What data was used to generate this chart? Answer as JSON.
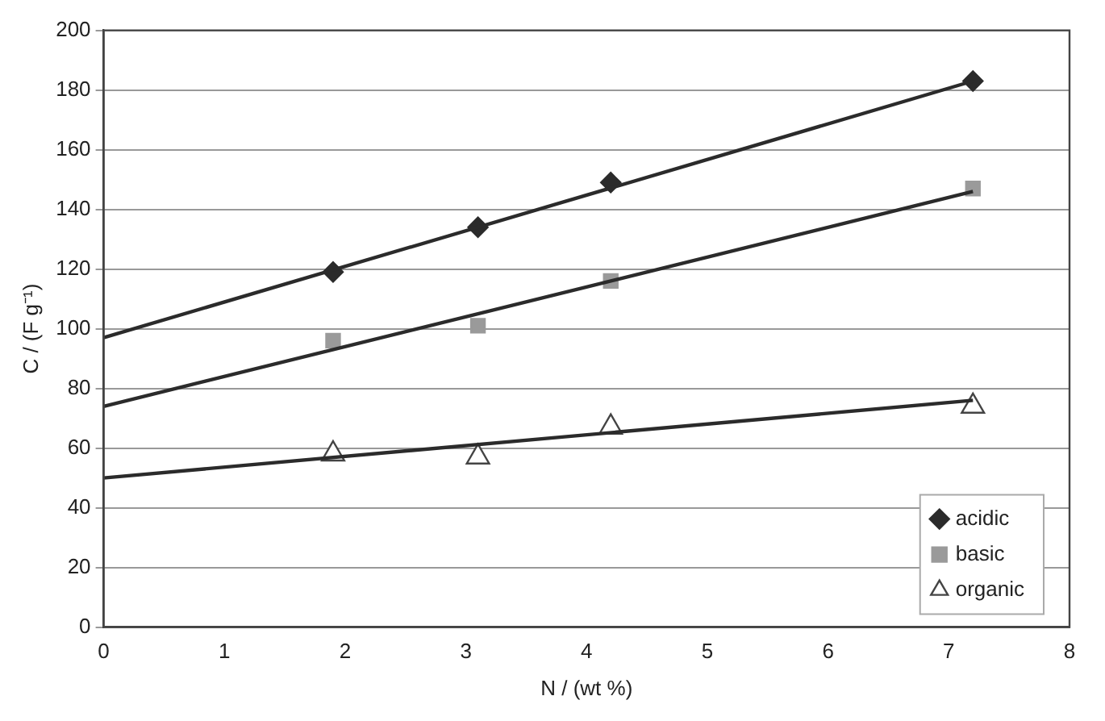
{
  "chart_data": {
    "type": "scatter",
    "xlabel": "N / (wt %)",
    "ylabel": "C / (F g⁻¹)",
    "xlim": [
      0,
      8
    ],
    "xticks": [
      0,
      1,
      2,
      3,
      4,
      5,
      6,
      7,
      8
    ],
    "ylim": [
      0,
      200
    ],
    "yticks": [
      0,
      20,
      40,
      60,
      80,
      100,
      120,
      140,
      160,
      180,
      200
    ],
    "grid": "y",
    "legend": "bottom right",
    "series": [
      {
        "name": "acidic",
        "color": "#2b2b2b",
        "marker": "diamond",
        "x": [
          1.9,
          3.1,
          4.2,
          7.2
        ],
        "values": [
          119,
          134,
          149,
          183
        ]
      },
      {
        "name": "basic",
        "color": "#9a9a9a",
        "marker": "square",
        "x": [
          1.9,
          3.1,
          4.2,
          7.2
        ],
        "values": [
          96,
          101,
          116,
          147
        ]
      },
      {
        "name": "organic",
        "color": "#444444",
        "marker": "triangle",
        "x": [
          1.9,
          3.1,
          4.2,
          7.2
        ],
        "values": [
          58,
          57,
          67,
          74
        ]
      },
      {
        "type": "line",
        "color": "#2b2b2b",
        "x": [
          0,
          7.2
        ],
        "values": [
          97,
          183
        ]
      },
      {
        "type": "line",
        "color": "#2b2b2b",
        "x": [
          0,
          7.2
        ],
        "values": [
          74,
          146
        ]
      },
      {
        "type": "line",
        "color": "#2b2b2b",
        "x": [
          0,
          7.2
        ],
        "values": [
          50,
          76
        ]
      }
    ]
  }
}
